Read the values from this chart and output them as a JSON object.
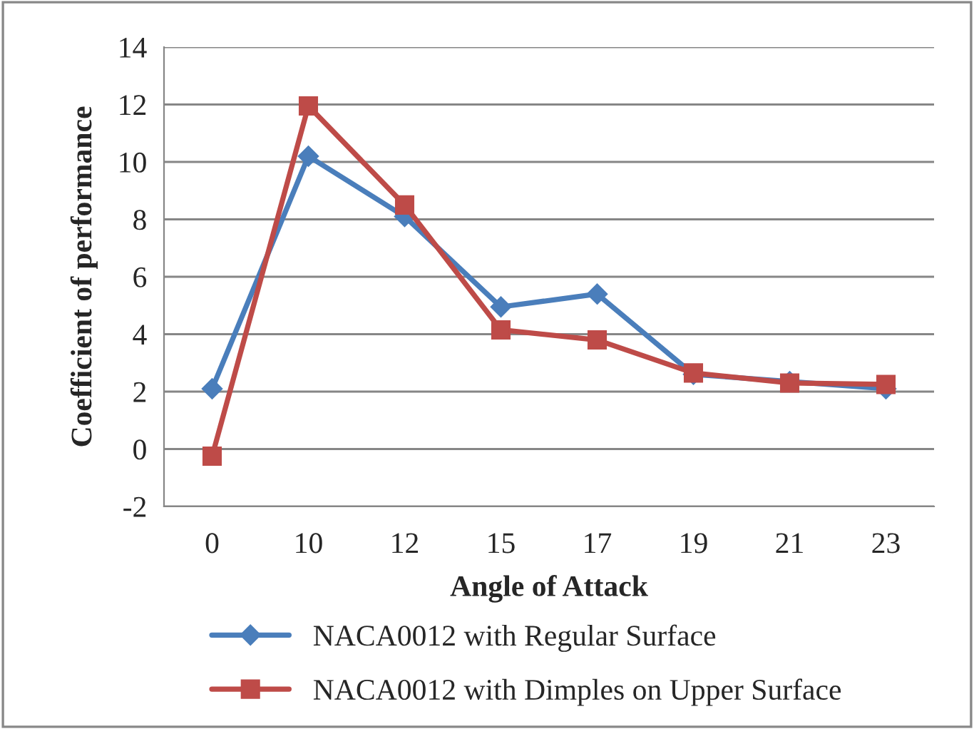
{
  "chart_data": {
    "type": "line",
    "xlabel": "Angle of Attack",
    "ylabel": "Coefficient of performance",
    "categories": [
      "0",
      "10",
      "12",
      "15",
      "17",
      "19",
      "21",
      "23"
    ],
    "series": [
      {
        "name": "NACA0012 with Regular Surface",
        "color": "#4a7ebb",
        "marker": "diamond",
        "values": [
          2.1,
          10.2,
          8.1,
          4.95,
          5.4,
          2.6,
          2.35,
          2.1
        ]
      },
      {
        "name": "NACA0012 with Dimples on Upper Surface",
        "color": "#be4b48",
        "marker": "square",
        "values": [
          -0.25,
          11.95,
          8.5,
          4.15,
          3.8,
          2.65,
          2.3,
          2.25
        ]
      }
    ],
    "ylim": [
      -2,
      14
    ],
    "yticks": [
      -2,
      0,
      2,
      4,
      6,
      8,
      10,
      12,
      14
    ],
    "grid": "y",
    "legend": "bottom",
    "line_style": "solid"
  }
}
